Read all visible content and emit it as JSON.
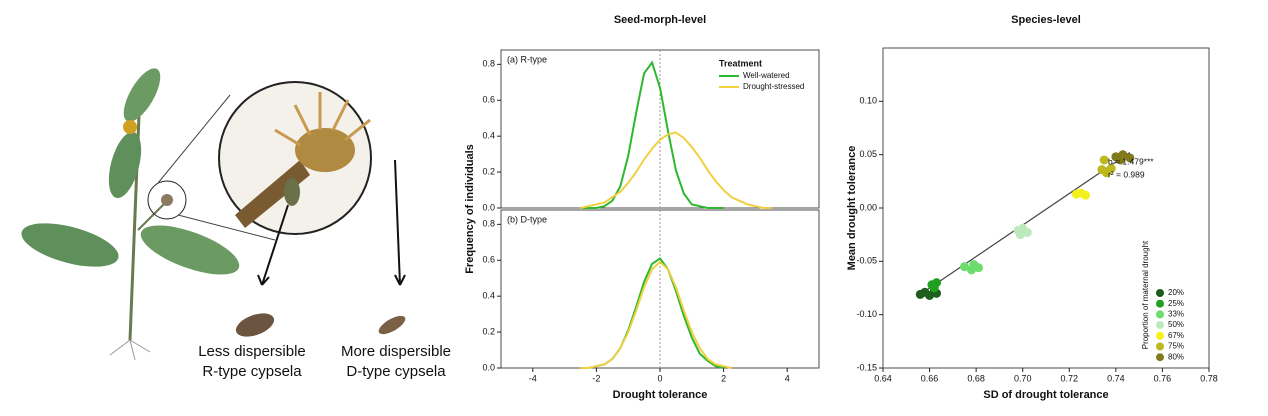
{
  "illustration": {
    "labels": [
      "Less dispersible",
      "R-type cypsela",
      "More dispersible",
      "D-type cypsela"
    ]
  },
  "chart_data": [
    {
      "type": "line",
      "title": "Seed-morph-level",
      "panel_label": "(a) R-type",
      "ylabel": "Frequency of individuals",
      "legend_title": "Treatment",
      "legend": "top-right",
      "xlim": [
        -5,
        5
      ],
      "ylim": [
        0,
        0.88
      ],
      "vline": 0,
      "yticks": [
        {
          "value": 0,
          "label": "0.0"
        },
        0.2,
        0.4,
        0.6,
        0.8
      ],
      "x": [
        -2.5,
        -2.25,
        -2,
        -1.75,
        -1.5,
        -1.25,
        -1,
        -0.75,
        -0.5,
        -0.25,
        0,
        0.25,
        0.5,
        0.75,
        1,
        1.25,
        1.5,
        1.75,
        2,
        2.25,
        2.5,
        2.75,
        3,
        3.25,
        3.5
      ],
      "series": [
        {
          "name": "Well-watered",
          "color": "#2db82d",
          "values": [
            0,
            0,
            0,
            0.01,
            0.04,
            0.12,
            0.29,
            0.53,
            0.75,
            0.81,
            0.67,
            0.43,
            0.21,
            0.08,
            0.02,
            0.01,
            0,
            0,
            0,
            null,
            null,
            null,
            null,
            null,
            null
          ]
        },
        {
          "name": "Drought-stressed",
          "color": "#f0d040",
          "values": [
            0,
            0.01,
            0.02,
            0.03,
            0.06,
            0.09,
            0.14,
            0.2,
            0.27,
            0.33,
            0.38,
            0.41,
            0.42,
            0.39,
            0.34,
            0.28,
            0.21,
            0.15,
            0.1,
            0.06,
            0.04,
            0.02,
            0.01,
            0,
            0
          ]
        }
      ]
    },
    {
      "type": "line",
      "panel_label": "(b) D-type",
      "xlabel": "Drought tolerance",
      "xlim": [
        -5,
        5
      ],
      "ylim": [
        0,
        0.88
      ],
      "vline": 0,
      "xticks": [
        -4,
        -2,
        0,
        2,
        4
      ],
      "yticks": [
        {
          "value": 0,
          "label": "0.0"
        },
        0.2,
        0.4,
        0.6,
        0.8
      ],
      "x": [
        -2.5,
        -2.25,
        -2,
        -1.75,
        -1.5,
        -1.25,
        -1,
        -0.75,
        -0.5,
        -0.25,
        0,
        0.25,
        0.5,
        0.75,
        1,
        1.25,
        1.5,
        1.75,
        2,
        2.25,
        2.5,
        2.75,
        3,
        3.25,
        3.5
      ],
      "series": [
        {
          "name": "Well-watered",
          "color": "#2db82d",
          "values": [
            0,
            0,
            0.01,
            0.02,
            0.05,
            0.11,
            0.21,
            0.34,
            0.48,
            0.58,
            0.61,
            0.55,
            0.43,
            0.29,
            0.17,
            0.08,
            0.04,
            0.01,
            0,
            null,
            null,
            null,
            null,
            null,
            null
          ]
        },
        {
          "name": "Drought-stressed",
          "color": "#f0d040",
          "values": [
            0,
            0,
            0.01,
            0.02,
            0.05,
            0.11,
            0.2,
            0.32,
            0.45,
            0.55,
            0.59,
            0.55,
            0.45,
            0.32,
            0.2,
            0.11,
            0.05,
            0.02,
            0.01,
            0,
            null,
            null,
            null,
            null,
            null
          ]
        }
      ]
    },
    {
      "type": "scatter",
      "title": "Species-level",
      "xlabel": "SD of drought tolerance",
      "ylabel": "Mean drought tolerance",
      "legend_title": "Proportion of maternal drought",
      "legend": "bottom-right",
      "xlim": [
        0.64,
        0.78
      ],
      "ylim": [
        -0.15,
        0.15
      ],
      "xticks": [
        0.64,
        0.66,
        0.68,
        {
          "value": 0.7,
          "label": "0.70"
        },
        0.72,
        0.74,
        0.76,
        0.78
      ],
      "yticks": [
        -0.15,
        {
          "value": -0.1,
          "label": "-0.10"
        },
        -0.05,
        {
          "value": 0,
          "label": "0.00"
        },
        0.05,
        {
          "value": 0.1,
          "label": "0.10"
        }
      ],
      "annotations": [
        "b = 1.479***",
        "r² = 0.989"
      ],
      "fit_line": {
        "x": [
          0.656,
          0.746
        ],
        "y": [
          -0.081,
          0.052
        ]
      },
      "series": [
        {
          "name": "20%",
          "color": "#1d5e1d",
          "x": [
            0.656,
            0.658,
            0.66,
            0.663,
            0.662
          ],
          "y": [
            -0.081,
            -0.079,
            -0.082,
            -0.08,
            -0.078
          ]
        },
        {
          "name": "25%",
          "color": "#1fa01f",
          "x": [
            0.661,
            0.663,
            0.662
          ],
          "y": [
            -0.072,
            -0.07,
            -0.075
          ]
        },
        {
          "name": "33%",
          "color": "#6cdc6c",
          "x": [
            0.675,
            0.679,
            0.681,
            0.678
          ],
          "y": [
            -0.055,
            -0.053,
            -0.056,
            -0.058
          ]
        },
        {
          "name": "50%",
          "color": "#bde9bd",
          "x": [
            0.698,
            0.7,
            0.702,
            0.699
          ],
          "y": [
            -0.021,
            -0.019,
            -0.023,
            -0.025
          ]
        },
        {
          "name": "67%",
          "color": "#f4f01c",
          "x": [
            0.723,
            0.725,
            0.727
          ],
          "y": [
            0.013,
            0.014,
            0.012
          ]
        },
        {
          "name": "75%",
          "color": "#bcb81e",
          "x": [
            0.734,
            0.736,
            0.738,
            0.735
          ],
          "y": [
            0.036,
            0.033,
            0.037,
            0.045
          ]
        },
        {
          "name": "80%",
          "color": "#807a1c",
          "x": [
            0.74,
            0.743,
            0.746,
            0.742
          ],
          "y": [
            0.048,
            0.05,
            0.047,
            0.045
          ]
        }
      ]
    }
  ]
}
